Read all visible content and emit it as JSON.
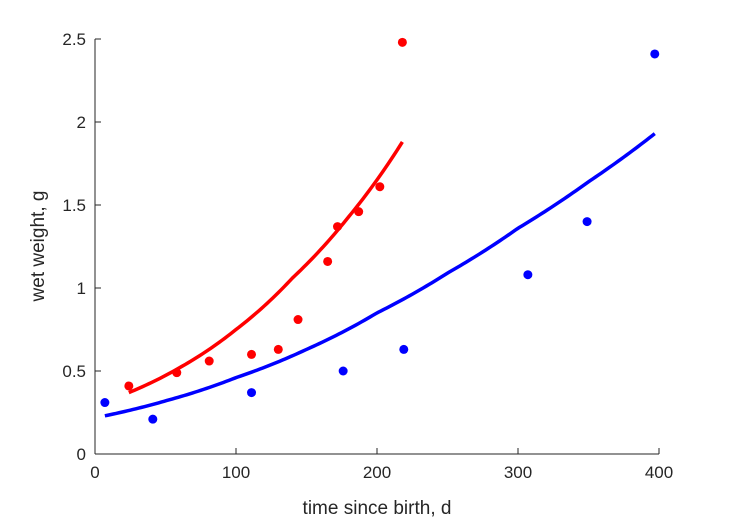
{
  "chart_data": {
    "type": "scatter",
    "title": "",
    "xlabel": "time since birth, d",
    "ylabel": "wet weight, g",
    "xlim": [
      0,
      400
    ],
    "ylim": [
      0,
      2.5
    ],
    "x_ticks": [
      0,
      100,
      200,
      300,
      400
    ],
    "x_tick_labels": [
      "0",
      "100",
      "200",
      "300",
      "400"
    ],
    "y_ticks": [
      0,
      0.5,
      1,
      1.5,
      2,
      2.5
    ],
    "y_tick_labels": [
      "0",
      "0.5",
      "1",
      "1.5",
      "2",
      "2.5"
    ],
    "grid": false,
    "legend": "none",
    "series": [
      {
        "color": "#ff0000",
        "points": [
          {
            "x": 24,
            "y": 0.41
          },
          {
            "x": 58,
            "y": 0.49
          },
          {
            "x": 81,
            "y": 0.56
          },
          {
            "x": 111,
            "y": 0.6
          },
          {
            "x": 130,
            "y": 0.63
          },
          {
            "x": 144,
            "y": 0.81
          },
          {
            "x": 165,
            "y": 1.16
          },
          {
            "x": 172,
            "y": 1.37
          },
          {
            "x": 187,
            "y": 1.46
          },
          {
            "x": 202,
            "y": 1.61
          },
          {
            "x": 218,
            "y": 2.48
          }
        ],
        "fit": [
          {
            "x": 24,
            "y": 0.37
          },
          {
            "x": 60,
            "y": 0.52
          },
          {
            "x": 100,
            "y": 0.75
          },
          {
            "x": 140,
            "y": 1.06
          },
          {
            "x": 180,
            "y": 1.43
          },
          {
            "x": 218,
            "y": 1.88
          }
        ]
      },
      {
        "color": "#0000ff",
        "points": [
          {
            "x": 7,
            "y": 0.31
          },
          {
            "x": 41,
            "y": 0.21
          },
          {
            "x": 111,
            "y": 0.37
          },
          {
            "x": 176,
            "y": 0.5
          },
          {
            "x": 219,
            "y": 0.63
          },
          {
            "x": 307,
            "y": 1.08
          },
          {
            "x": 349,
            "y": 1.4
          },
          {
            "x": 397,
            "y": 2.41
          }
        ],
        "fit": [
          {
            "x": 7,
            "y": 0.23
          },
          {
            "x": 50,
            "y": 0.32
          },
          {
            "x": 100,
            "y": 0.46
          },
          {
            "x": 150,
            "y": 0.63
          },
          {
            "x": 200,
            "y": 0.85
          },
          {
            "x": 250,
            "y": 1.09
          },
          {
            "x": 300,
            "y": 1.36
          },
          {
            "x": 350,
            "y": 1.64
          },
          {
            "x": 397,
            "y": 1.93
          }
        ]
      }
    ]
  }
}
